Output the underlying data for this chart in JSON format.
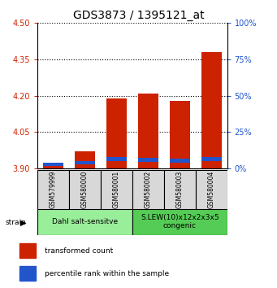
{
  "title": "GDS3873 / 1395121_at",
  "samples": [
    "GSM579999",
    "GSM580000",
    "GSM580001",
    "GSM580002",
    "GSM580003",
    "GSM580004"
  ],
  "red_tops": [
    3.92,
    3.97,
    4.19,
    4.21,
    4.18,
    4.38
  ],
  "blue_bottoms": [
    3.912,
    3.916,
    3.93,
    3.928,
    3.924,
    3.93
  ],
  "blue_tops": [
    3.925,
    3.93,
    3.946,
    3.945,
    3.94,
    3.948
  ],
  "bar_base": 3.9,
  "ylim": [
    3.9,
    4.5
  ],
  "yticks": [
    3.9,
    4.05,
    4.2,
    4.35,
    4.5
  ],
  "right_yticks": [
    0,
    25,
    50,
    75,
    100
  ],
  "red_color": "#cc2200",
  "blue_color": "#2255cc",
  "group1_label": "Dahl salt-sensitve",
  "group2_label": "S.LEW(10)x12x2x3x5\ncongenic",
  "group1_indices": [
    0,
    1,
    2
  ],
  "group2_indices": [
    3,
    4,
    5
  ],
  "group1_color": "#99ee99",
  "group2_color": "#55cc55",
  "legend_red": "transformed count",
  "legend_blue": "percentile rank within the sample",
  "strain_label": "strain",
  "bar_width": 0.65,
  "tick_fontsize": 7,
  "title_fontsize": 10,
  "sample_fontsize": 5.5,
  "group_fontsize": 6.5,
  "legend_fontsize": 6.5
}
